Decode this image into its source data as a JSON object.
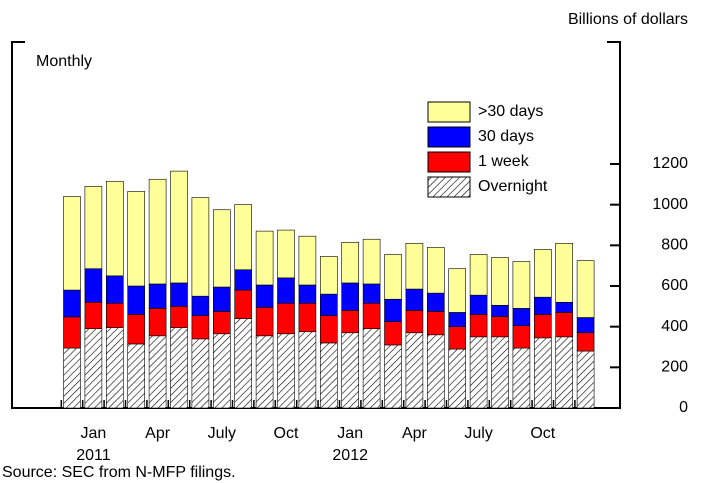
{
  "chart_data": {
    "type": "stacked-bar",
    "unit_label": "Billions of dollars",
    "frequency_label": "Monthly",
    "source": "Source: SEC from N-MFP filings.",
    "categories": [
      null,
      "Jan",
      null,
      null,
      "Apr",
      null,
      null,
      "July",
      null,
      null,
      "Oct",
      null,
      null,
      "Jan",
      null,
      null,
      "Apr",
      null,
      null,
      "July",
      null,
      null,
      "Oct",
      null,
      null
    ],
    "x_sublabels": [
      null,
      "2011",
      null,
      null,
      null,
      null,
      null,
      null,
      null,
      null,
      null,
      null,
      null,
      "2012",
      null,
      null,
      null,
      null,
      null,
      null,
      null,
      null,
      null,
      null,
      null
    ],
    "series": [
      {
        "name": "Overnight",
        "color": "#ffffff",
        "hatch": true,
        "values": [
          295,
          390,
          395,
          315,
          355,
          395,
          340,
          365,
          440,
          355,
          365,
          375,
          320,
          370,
          390,
          310,
          370,
          360,
          290,
          350,
          350,
          295,
          345,
          350,
          280
        ]
      },
      {
        "name": "1 week",
        "color": "#ff0000",
        "values": [
          153,
          130,
          120,
          145,
          135,
          105,
          115,
          110,
          140,
          140,
          150,
          140,
          135,
          110,
          125,
          115,
          110,
          115,
          110,
          110,
          100,
          110,
          115,
          120,
          90
        ]
      },
      {
        "name": "30 days",
        "color": "#0000ff",
        "values": [
          132,
          165,
          135,
          140,
          120,
          115,
          95,
          120,
          100,
          110,
          125,
          90,
          105,
          135,
          95,
          110,
          105,
          90,
          70,
          95,
          55,
          85,
          85,
          50,
          75
        ]
      },
      {
        "name": ">30 days",
        "color": "#ffff99",
        "values": [
          460,
          405,
          465,
          465,
          515,
          550,
          485,
          380,
          320,
          265,
          235,
          240,
          185,
          200,
          220,
          220,
          225,
          225,
          215,
          200,
          235,
          230,
          235,
          290,
          280
        ]
      }
    ],
    "ylim": [
      0,
      1200
    ],
    "yticks": [
      0,
      200,
      400,
      600,
      800,
      1000,
      1200
    ]
  }
}
